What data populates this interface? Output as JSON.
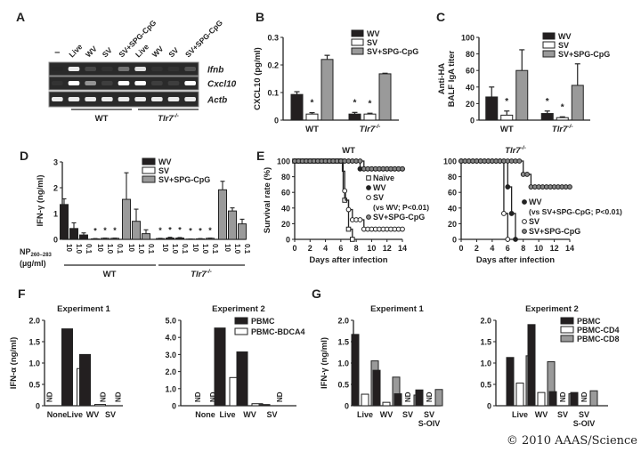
{
  "panel_labels": [
    "A",
    "B",
    "C",
    "D",
    "E",
    "F",
    "G"
  ],
  "copyright": "© 2010 AAAS/Science",
  "colors": {
    "WV": "#231f20",
    "SV": "#ffffff",
    "SV+SPG-CpG": "#9a9a9a",
    "PBMC": "#231f20",
    "PBMC-BDCA4": "#ffffff",
    "PBMC-CD4": "#ffffff",
    "PBMC-CD8": "#9a9a9a"
  },
  "chart_data": [
    {
      "id": "A",
      "type": "gel",
      "lanes": [
        "–",
        "Live",
        "WV",
        "SV",
        "SV+SPG-CpG",
        "Live",
        "WV",
        "SV",
        "SV+SPG-CpG"
      ],
      "rows": [
        {
          "name": "Ifnb",
          "intensity": [
            0,
            0.9,
            0.15,
            0.05,
            0.35,
            0.85,
            0.05,
            0.05,
            0.2
          ]
        },
        {
          "name": "Cxcl10",
          "intensity": [
            0.05,
            1,
            0.5,
            0.1,
            1,
            1,
            0.1,
            0.1,
            1
          ]
        },
        {
          "name": "Actb",
          "intensity": [
            0.9,
            0.9,
            0.9,
            0.9,
            0.9,
            0.9,
            0.9,
            0.9,
            0.9
          ]
        }
      ],
      "groups": [
        {
          "label": "WT",
          "sup": ""
        },
        {
          "label": "Tlr7",
          "sup": "-/-"
        }
      ]
    },
    {
      "id": "B",
      "type": "bar",
      "ylabel": "CXCL10 (pg/ml)",
      "ylim": [
        0,
        0.3
      ],
      "yticks": [
        "0",
        "0.1",
        "0.2",
        "0.3"
      ],
      "categories": [
        {
          "label": "WT",
          "sup": ""
        },
        {
          "label": "Tlr7",
          "sup": "-/-"
        }
      ],
      "series": [
        {
          "name": "WV",
          "values": [
            0.093,
            0.022
          ],
          "errors": [
            0.01,
            0.006
          ],
          "stars": [
            false,
            true
          ]
        },
        {
          "name": "SV",
          "values": [
            0.022,
            0.022
          ],
          "errors": [
            0.005,
            0.003
          ],
          "stars": [
            true,
            true
          ]
        },
        {
          "name": "SV+SPG-CpG",
          "values": [
            0.22,
            0.168
          ],
          "errors": [
            0.015,
            0.002
          ],
          "stars": [
            false,
            false
          ]
        }
      ]
    },
    {
      "id": "C",
      "type": "bar",
      "ylabel": [
        "Anti-HA",
        "BALF IgA titer"
      ],
      "ylim": [
        0,
        100
      ],
      "yticks": [
        "0",
        "20",
        "40",
        "60",
        "80",
        "100"
      ],
      "categories": [
        {
          "label": "WT",
          "sup": ""
        },
        {
          "label": "Tlr7",
          "sup": "-/-"
        }
      ],
      "series": [
        {
          "name": "WV",
          "values": [
            28,
            8
          ],
          "errors": [
            12,
            3
          ],
          "stars": [
            false,
            true
          ]
        },
        {
          "name": "SV",
          "values": [
            6,
            3
          ],
          "errors": [
            5,
            1
          ],
          "stars": [
            true,
            true
          ]
        },
        {
          "name": "SV+SPG-CpG",
          "values": [
            60,
            42
          ],
          "errors": [
            25,
            26
          ],
          "stars": [
            false,
            false
          ]
        }
      ]
    },
    {
      "id": "D",
      "type": "bar",
      "ylabel": "IFN-γ (ng/ml)",
      "ylim": [
        0,
        3
      ],
      "yticks": [
        "0",
        "1",
        "2",
        "3"
      ],
      "xlabel": {
        "main": "NP",
        "sub": "260–283",
        "unit": "(µg/ml)"
      },
      "legend": [
        "WV",
        "SV",
        "SV+SPG-CpG"
      ],
      "strains": [
        {
          "label": "WT",
          "sup": ""
        },
        {
          "label": "Tlr7",
          "sup": "-/-"
        }
      ],
      "groups": [
        {
          "strain": "WT",
          "series": "WV",
          "doses": [
            "10",
            "1.0",
            "0.1"
          ],
          "values": [
            1.35,
            0.42,
            0.17
          ],
          "errors": [
            0.22,
            0.22,
            0.08
          ],
          "stars": [
            false,
            false,
            false
          ]
        },
        {
          "strain": "WT",
          "series": "SV",
          "doses": [
            "10",
            "1.0",
            "0.1"
          ],
          "values": [
            0.02,
            0.04,
            0.04
          ],
          "errors": [
            0.01,
            0.01,
            0.01
          ],
          "stars": [
            true,
            true,
            true
          ]
        },
        {
          "strain": "WT",
          "series": "SV+SPG-CpG",
          "doses": [
            "10",
            "1.0",
            "0.1"
          ],
          "values": [
            1.55,
            0.7,
            0.22
          ],
          "errors": [
            1.03,
            0.47,
            0.15
          ],
          "stars": [
            false,
            false,
            false
          ]
        },
        {
          "strain": "Tlr7-/-",
          "series": "WV",
          "doses": [
            "10",
            "1.0",
            "0.1"
          ],
          "values": [
            0.03,
            0.05,
            0.05
          ],
          "errors": [
            0.01,
            0.03,
            0.02
          ],
          "stars": [
            true,
            true,
            true
          ]
        },
        {
          "strain": "Tlr7-/-",
          "series": "SV",
          "doses": [
            "10",
            "1.0",
            "0.1"
          ],
          "values": [
            0.01,
            0.02,
            0.04
          ],
          "errors": [
            0.005,
            0.01,
            0.01
          ],
          "stars": [
            true,
            true,
            true
          ]
        },
        {
          "strain": "Tlr7-/-",
          "series": "SV+SPG-CpG",
          "doses": [
            "10",
            "1.0",
            "0.1"
          ],
          "values": [
            1.92,
            1.1,
            0.6
          ],
          "errors": [
            0.33,
            0.12,
            0.18
          ],
          "stars": [
            false,
            false,
            false
          ]
        }
      ]
    },
    {
      "id": "E-WT",
      "type": "line",
      "title": {
        "label": "WT",
        "sup": ""
      },
      "ylabel": "Survival rate (%)",
      "xlabel": "Days after infection",
      "xlim": [
        0,
        14
      ],
      "ylim": [
        0,
        100
      ],
      "xticks": [
        "0",
        "2",
        "4",
        "6",
        "8",
        "10",
        "12",
        "14"
      ],
      "yticks": [
        "0",
        "20",
        "40",
        "60",
        "80",
        "100"
      ],
      "series": [
        {
          "name": "Naïve",
          "marker": "open-square",
          "steps": [
            [
              0,
              100
            ],
            [
              6.2,
              87
            ],
            [
              6.5,
              50
            ],
            [
              7,
              13
            ],
            [
              7.5,
              0
            ]
          ]
        },
        {
          "name": "WV",
          "marker": "filled-circle",
          "steps": [
            [
              0,
              100
            ],
            [
              8.5,
              90
            ],
            [
              14,
              90
            ]
          ]
        },
        {
          "name": "SV",
          "note": "(vs WV; P<0.01)",
          "marker": "open-circle",
          "steps": [
            [
              0,
              100
            ],
            [
              6.3,
              62
            ],
            [
              6.6,
              50
            ],
            [
              7,
              38
            ],
            [
              7.5,
              25
            ],
            [
              9,
              13
            ],
            [
              14,
              13
            ]
          ]
        },
        {
          "name": "SV+SPG-CpG",
          "marker": "gray-circle",
          "steps": [
            [
              0,
              100
            ],
            [
              9,
              90
            ],
            [
              14,
              90
            ]
          ]
        }
      ]
    },
    {
      "id": "E-Tlr7",
      "type": "line",
      "title": {
        "label": "Tlr7",
        "sup": "-/-"
      },
      "ylabel": "",
      "xlabel": "Days after infection",
      "xlim": [
        0,
        14
      ],
      "ylim": [
        0,
        100
      ],
      "xticks": [
        "0",
        "2",
        "4",
        "6",
        "8",
        "10",
        "12",
        "14"
      ],
      "yticks": [
        "0",
        "20",
        "40",
        "60",
        "80",
        "100"
      ],
      "series": [
        {
          "name": "WV",
          "note": "(vs SV+SPG-CpG; P<0.01)",
          "marker": "filled-circle",
          "steps": [
            [
              0,
              100
            ],
            [
              6,
              67
            ],
            [
              6.5,
              33
            ],
            [
              7,
              0
            ]
          ]
        },
        {
          "name": "SV",
          "marker": "open-circle",
          "steps": [
            [
              0,
              100
            ],
            [
              5.5,
              33
            ],
            [
              6,
              0
            ]
          ]
        },
        {
          "name": "SV+SPG-CpG",
          "marker": "gray-circle",
          "steps": [
            [
              0,
              100
            ],
            [
              8,
              83
            ],
            [
              9,
              67
            ],
            [
              14,
              67
            ]
          ]
        }
      ]
    },
    {
      "id": "F-1",
      "type": "bar",
      "title": "Experiment 1",
      "ylabel": "IFN-α (ng/ml)",
      "ylim": [
        0,
        2
      ],
      "yticks": [
        "0",
        "0.5",
        "1.0",
        "1.5",
        "2.0"
      ],
      "categories": [
        {
          "label": "None"
        },
        {
          "label": "Live"
        },
        {
          "label": "WV"
        },
        {
          "label": "SV"
        }
      ],
      "nd_label": "ND",
      "series": [
        {
          "name": "PBMC",
          "values": [
            null,
            1.8,
            1.2,
            null
          ]
        },
        {
          "name": "PBMC-BDCA4",
          "values": [
            null,
            0.87,
            0.03,
            null
          ]
        }
      ]
    },
    {
      "id": "F-2",
      "type": "bar",
      "title": "Experiment 2",
      "ylabel": "",
      "ylim": [
        0,
        5
      ],
      "yticks": [
        "0",
        "1.0",
        "2.0",
        "3.0",
        "4.0",
        "5.0"
      ],
      "categories": [
        {
          "label": "None"
        },
        {
          "label": "Live"
        },
        {
          "label": "WV"
        },
        {
          "label": "SV"
        }
      ],
      "nd_label": "ND",
      "legend": [
        "PBMC",
        "PBMC-BDCA4"
      ],
      "series": [
        {
          "name": "PBMC",
          "values": [
            null,
            4.55,
            3.15,
            0.07
          ]
        },
        {
          "name": "PBMC-BDCA4",
          "values": [
            null,
            1.65,
            0.12,
            null
          ]
        }
      ]
    },
    {
      "id": "G-1",
      "type": "bar",
      "title": "Experiment 1",
      "ylabel": "IFN-γ (ng/ml)",
      "ylim": [
        0,
        2
      ],
      "yticks": [
        "0",
        "0.5",
        "1.0",
        "1.5",
        "2.0"
      ],
      "categories": [
        {
          "label": "Live"
        },
        {
          "label": "WV"
        },
        {
          "label": "SV"
        },
        {
          "label": "SV",
          "line2": "S-OIV"
        }
      ],
      "nd_label": "ND",
      "series": [
        {
          "name": "PBMC",
          "values": [
            1.67,
            0.83,
            0.28,
            0.37
          ]
        },
        {
          "name": "PBMC-CD4",
          "values": [
            0.27,
            0.08,
            null,
            null
          ]
        },
        {
          "name": "PBMC-CD8",
          "values": [
            1.05,
            0.67,
            0.25,
            0.38
          ]
        }
      ]
    },
    {
      "id": "G-2",
      "type": "bar",
      "title": "Experiment 2",
      "ylabel": "",
      "ylim": [
        0,
        2
      ],
      "yticks": [
        "0",
        "0.5",
        "1.0",
        "1.5",
        "2.0"
      ],
      "categories": [
        {
          "label": "Live"
        },
        {
          "label": "WV"
        },
        {
          "label": "SV"
        },
        {
          "label": "SV",
          "line2": "S-OIV"
        }
      ],
      "nd_label": "ND",
      "legend": [
        "PBMC",
        "PBMC-CD4",
        "PBMC-CD8"
      ],
      "series": [
        {
          "name": "PBMC",
          "values": [
            1.13,
            1.9,
            0.33,
            0.31
          ]
        },
        {
          "name": "PBMC-CD4",
          "values": [
            0.53,
            0.31,
            null,
            null
          ]
        },
        {
          "name": "PBMC-CD8",
          "values": [
            1.17,
            1.03,
            0.28,
            0.35
          ]
        }
      ]
    }
  ]
}
